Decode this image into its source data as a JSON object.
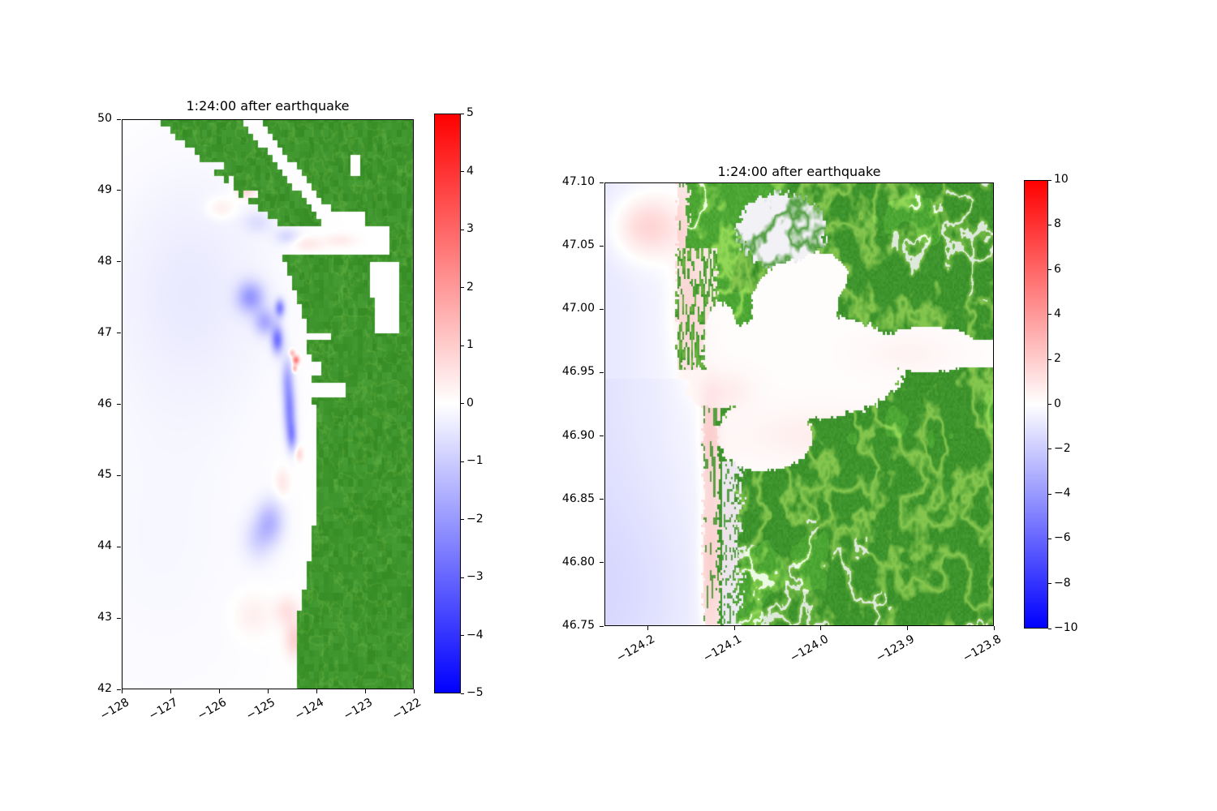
{
  "figure": {
    "background": "#ffffff",
    "panels": [
      {
        "id": "regional-overview",
        "title": "1:24:00 after earthquake",
        "axes": {
          "xlim": [
            -128,
            -122
          ],
          "ylim": [
            42,
            50
          ],
          "xtick_values": [
            -128,
            -127,
            -126,
            -125,
            -124,
            -123,
            -122
          ],
          "xtick_labels": [
            "−128",
            "−127",
            "−126",
            "−125",
            "−124",
            "−123",
            "−122"
          ],
          "ytick_values": [
            50,
            49,
            48,
            47,
            46,
            45,
            44,
            43,
            42
          ],
          "ytick_labels": [
            "50",
            "49",
            "48",
            "47",
            "46",
            "45",
            "44",
            "43",
            "42"
          ]
        },
        "colorbar": {
          "vmin": -5,
          "vmax": 5,
          "tick_values": [
            5,
            4,
            3,
            2,
            1,
            0,
            -1,
            -2,
            -3,
            -4,
            -5
          ],
          "tick_labels": [
            "5",
            "4",
            "3",
            "2",
            "1",
            "0",
            "−1",
            "−2",
            "−3",
            "−4",
            "−5"
          ],
          "top_color": "#ff0000",
          "mid_color": "#ffffff",
          "bottom_color": "#0000ff"
        }
      },
      {
        "id": "grays-harbor-zoom",
        "title": "1:24:00 after earthquake",
        "axes": {
          "xlim": [
            -124.25,
            -123.8
          ],
          "ylim": [
            46.75,
            47.1
          ],
          "xtick_values": [
            -124.2,
            -124.1,
            -124.0,
            -123.9,
            -123.8
          ],
          "xtick_labels": [
            "−124.2",
            "−124.1",
            "−124.0",
            "−123.9",
            "−123.8"
          ],
          "ytick_values": [
            47.1,
            47.05,
            47.0,
            46.95,
            46.9,
            46.85,
            46.8,
            46.75
          ],
          "ytick_labels": [
            "47.10",
            "47.05",
            "47.00",
            "46.95",
            "46.90",
            "46.85",
            "46.80",
            "46.75"
          ]
        },
        "colorbar": {
          "vmin": -10,
          "vmax": 10,
          "tick_values": [
            10,
            8,
            6,
            4,
            2,
            0,
            -2,
            -4,
            -6,
            -8,
            -10
          ],
          "tick_labels": [
            "10",
            "8",
            "6",
            "4",
            "2",
            "0",
            "−2",
            "−4",
            "−6",
            "−8",
            "−10"
          ],
          "top_color": "#ff0000",
          "mid_color": "#ffffff",
          "bottom_color": "#0000ff"
        }
      }
    ]
  },
  "chart_data": [
    {
      "type": "heatmap",
      "title": "1:24:00 after earthquake",
      "xlabel": "",
      "ylabel": "",
      "x_range": [
        -128,
        -122
      ],
      "y_range": [
        42,
        50
      ],
      "x_ticks": [
        -128,
        -127,
        -126,
        -125,
        -124,
        -123,
        -122
      ],
      "y_ticks": [
        50,
        49,
        48,
        47,
        46,
        45,
        44,
        43,
        42
      ],
      "colorbar_range": [
        -5,
        5
      ],
      "colorbar_ticks": [
        5,
        4,
        3,
        2,
        1,
        0,
        -1,
        -2,
        -3,
        -4,
        -5
      ],
      "colormap": "blue-white-red diverging, white at 0",
      "land_color": "#3E942C",
      "valley_color": "#8CCB52",
      "sea_anomaly_blobs": [
        [
          -126.6,
          47.6,
          1.7,
          1.7,
          -0.4
        ],
        [
          -127.2,
          44.0,
          2.2,
          2.2,
          -0.15
        ],
        [
          -125.35,
          47.5,
          0.28,
          0.22,
          -1.8
        ],
        [
          -125.05,
          47.15,
          0.22,
          0.18,
          -1.5
        ],
        [
          -124.8,
          46.9,
          0.12,
          0.18,
          -2.6
        ],
        [
          -124.75,
          47.35,
          0.1,
          0.12,
          -2.3
        ],
        [
          -124.6,
          46.35,
          0.12,
          0.3,
          -1.4
        ],
        [
          -124.55,
          45.9,
          0.12,
          0.35,
          -2.2
        ],
        [
          -124.5,
          45.55,
          0.1,
          0.2,
          -1.7
        ],
        [
          -124.95,
          44.35,
          0.28,
          0.3,
          -1.3
        ],
        [
          -125.2,
          44.1,
          0.3,
          0.3,
          -0.7
        ],
        [
          -124.6,
          48.35,
          0.25,
          0.12,
          -0.7
        ],
        [
          -125.2,
          48.55,
          0.3,
          0.15,
          -0.5
        ],
        [
          -125.45,
          49.0,
          0.22,
          0.12,
          0.9
        ],
        [
          -125.95,
          48.75,
          0.3,
          0.15,
          0.5
        ],
        [
          -124.42,
          46.62,
          0.07,
          0.06,
          2.8
        ],
        [
          -124.5,
          46.72,
          0.06,
          0.05,
          1.5
        ],
        [
          -124.45,
          46.5,
          0.05,
          0.05,
          1.8
        ],
        [
          -124.2,
          48.25,
          0.35,
          0.1,
          0.5
        ],
        [
          -123.5,
          48.3,
          0.3,
          0.09,
          0.4
        ],
        [
          -124.45,
          42.7,
          0.2,
          0.25,
          0.9
        ],
        [
          -124.6,
          43.1,
          0.25,
          0.2,
          0.6
        ],
        [
          -125.3,
          43.05,
          0.4,
          0.3,
          0.35
        ],
        [
          -124.7,
          44.9,
          0.15,
          0.2,
          0.5
        ],
        [
          -124.35,
          45.3,
          0.08,
          0.1,
          0.8
        ]
      ],
      "render": {
        "cell_size": 0.1,
        "coast": [
          [
            42,
            -124.35
          ],
          [
            42.9,
            -124.42
          ],
          [
            43.5,
            -124.22
          ],
          [
            44.3,
            -124.05
          ],
          [
            45.2,
            -123.95
          ],
          [
            46.0,
            -124.05
          ],
          [
            46.6,
            -124.12
          ],
          [
            47.1,
            -124.22
          ],
          [
            47.6,
            -124.45
          ],
          [
            48.13,
            -124.72
          ]
        ],
        "island_west": [
          [
            48.3,
            -124.5
          ],
          [
            48.6,
            -124.85
          ],
          [
            49.0,
            -125.7
          ],
          [
            49.4,
            -126.3
          ],
          [
            49.7,
            -126.8
          ],
          [
            50.0,
            -127.3
          ]
        ],
        "georgia": {
          "lat0": 48.6,
          "lon0": -123.75,
          "slope": 1.17,
          "half_width": 0.18
        },
        "jdf": [
          48.13,
          48.47,
          -124.85,
          -122.55
        ],
        "connection": [
          48.3,
          48.68,
          -123.95,
          -123.05
        ],
        "island_inlets": [
          [
            -125.35,
            48.95,
            0.14,
            0.1
          ],
          [
            -126.05,
            49.35,
            0.12,
            0.09
          ],
          [
            -125.75,
            49.12,
            0.1,
            0.07
          ]
        ],
        "mainland_notches": [
          [
            -123.2,
            49.35,
            0.1,
            0.12
          ]
        ],
        "columbia": [
          46.12,
          46.32,
          -123.42
        ],
        "bays": [
          [
            -123.92,
            46.95,
            0.24,
            0.1
          ],
          [
            -123.98,
            46.5,
            0.1,
            0.13
          ]
        ],
        "puget": [
          [
            -122.92,
            -122.32,
            47.5,
            48.05
          ],
          [
            -122.78,
            -122.32,
            47.02,
            47.5
          ]
        ]
      }
    },
    {
      "type": "heatmap",
      "title": "1:24:00 after earthquake",
      "xlabel": "",
      "ylabel": "",
      "x_range": [
        -124.25,
        -123.8
      ],
      "y_range": [
        46.75,
        47.1
      ],
      "x_ticks": [
        -124.2,
        -124.1,
        -124.0,
        -123.9,
        -123.8
      ],
      "y_ticks": [
        47.1,
        47.05,
        47.0,
        46.95,
        46.9,
        46.85,
        46.8,
        46.75
      ],
      "colorbar_range": [
        -10,
        10
      ],
      "colorbar_ticks": [
        10,
        8,
        6,
        4,
        2,
        0,
        -2,
        -4,
        -6,
        -8,
        -10
      ],
      "colormap": "blue-white-red diverging, white at 0",
      "land_color": "#3E942C",
      "valley_color": "#8CCB52",
      "sand_color": "#F2E2DF",
      "marsh_color": "#ECEBF3",
      "plain_color": "#F2F1F6",
      "flat_color": "#EDEFF4",
      "sea_anomaly_blobs": [
        [
          -124.2,
          47.065,
          0.04,
          0.025,
          2.2
        ],
        [
          -124.155,
          47.0,
          0.02,
          0.05,
          1.0
        ],
        [
          -124.128,
          46.8,
          0.012,
          0.06,
          1.4
        ],
        [
          -124.128,
          46.9,
          0.012,
          0.04,
          1.2
        ],
        [
          -124.11,
          46.935,
          0.03,
          0.015,
          0.9
        ],
        [
          -124.0,
          46.9,
          0.09,
          0.02,
          0.8
        ],
        [
          -123.9,
          46.965,
          0.05,
          0.015,
          0.5
        ],
        [
          -124.22,
          46.78,
          0.09,
          0.08,
          -0.5
        ],
        [
          -124.105,
          46.82,
          0.012,
          0.05,
          1.0
        ]
      ],
      "render": {
        "cell_size": 0.002,
        "outer_coast_south": -124.136,
        "outer_coast_north": -124.166,
        "coast_switch_lat": 46.945,
        "spit_width": 0.018,
        "north_spit": [
          46.952,
          47.048,
          0.045
        ],
        "marsh": [
          46.75,
          46.88,
          0.042
        ],
        "plain": [
          -124.045,
          47.062,
          0.05,
          0.03
        ],
        "harbor_ellipses": [
          [
            -124.02,
            46.955,
            0.118,
            0.042
          ],
          [
            -124.03,
            47.0,
            0.05,
            0.038
          ],
          [
            -123.875,
            46.968,
            0.06,
            0.018
          ],
          [
            -124.065,
            46.9,
            0.055,
            0.028
          ],
          [
            -124.12,
            46.936,
            0.035,
            0.014
          ],
          [
            -124.0,
            47.025,
            0.03,
            0.02
          ],
          [
            -124.115,
            46.97,
            0.02,
            0.035
          ]
        ],
        "river_band": [
          46.953,
          46.977,
          -123.845
        ]
      }
    }
  ]
}
